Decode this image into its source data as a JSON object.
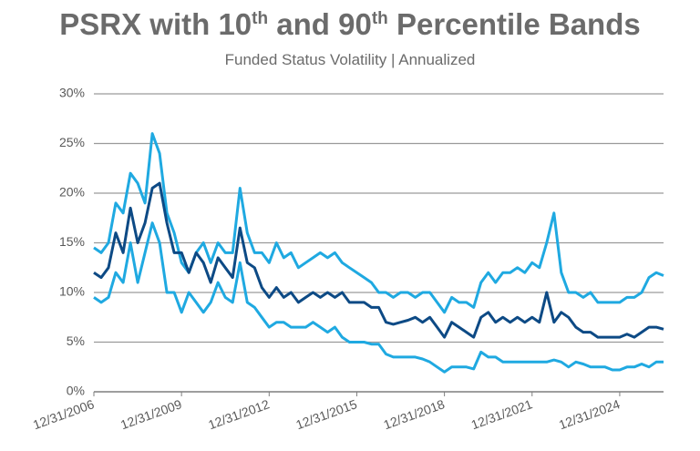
{
  "chart_data": {
    "type": "line",
    "title": "PSRX with 10th and 90th Percentile Bands",
    "subtitle": "Funded Status Volatility | Annualized",
    "categories": [
      "12/31/2006",
      null,
      null,
      null,
      null,
      null,
      null,
      null,
      null,
      null,
      null,
      null,
      "12/31/2009",
      null,
      null,
      null,
      null,
      null,
      null,
      null,
      null,
      null,
      null,
      null,
      "12/31/2012",
      null,
      null,
      null,
      null,
      null,
      null,
      null,
      null,
      null,
      null,
      null,
      "12/31/2015",
      null,
      null,
      null,
      null,
      null,
      null,
      null,
      null,
      null,
      null,
      null,
      "12/31/2018",
      null,
      null,
      null,
      null,
      null,
      null,
      null,
      null,
      null,
      null,
      null,
      "12/31/2021",
      null,
      null,
      null,
      null,
      null,
      null,
      null,
      null,
      null,
      null,
      null,
      "12/31/2024",
      null,
      null,
      null,
      null,
      null,
      null
    ],
    "series": [
      {
        "color": "#1fa9e1",
        "values": [
          14.5,
          14,
          15,
          19,
          18,
          22,
          21,
          19,
          26,
          24,
          18,
          16,
          13,
          12,
          14,
          15,
          13,
          15,
          14,
          14,
          20.5,
          16,
          14,
          14,
          13,
          15,
          13.5,
          14,
          12.5,
          13,
          13.5,
          14,
          13.5,
          14,
          13,
          12.5,
          12,
          11.5,
          11,
          10,
          10,
          9.5,
          10,
          10,
          9.5,
          10,
          10,
          9,
          8,
          9.5,
          9,
          9,
          8.5,
          11,
          12,
          11,
          12,
          12,
          12.5,
          12,
          13,
          12.5,
          15,
          18,
          12,
          10,
          10,
          9.5,
          10,
          9,
          9,
          9,
          9,
          9.5,
          9.5,
          10,
          11.5,
          12,
          11.7
        ]
      },
      {
        "color": "#0d4a85",
        "values": [
          12,
          11.5,
          12.5,
          16,
          14,
          18.5,
          15,
          17,
          20.5,
          21,
          17,
          14,
          14,
          12,
          14,
          13,
          11,
          13.5,
          12.5,
          11.5,
          16.5,
          13,
          12.5,
          10.5,
          9.5,
          10.5,
          9.5,
          10,
          9,
          9.5,
          10,
          9.5,
          10,
          9.5,
          10,
          9,
          9,
          9,
          8.5,
          8.5,
          7,
          6.8,
          7,
          7.2,
          7.5,
          7,
          7.5,
          6.5,
          5.5,
          7,
          6.5,
          6,
          5.5,
          7.5,
          8,
          7,
          7.5,
          7,
          7.5,
          7,
          7.5,
          7,
          10,
          7,
          8,
          7.5,
          6.5,
          6,
          6,
          5.5,
          5.5,
          5.5,
          5.5,
          5.8,
          5.5,
          6,
          6.5,
          6.5,
          6.3
        ]
      },
      {
        "color": "#1fa9e1",
        "values": [
          9.5,
          9,
          9.5,
          12,
          11,
          15,
          11,
          14,
          17,
          15,
          10,
          10,
          8,
          10,
          9,
          8,
          9,
          11,
          9.5,
          9,
          13,
          9,
          8.5,
          7.5,
          6.5,
          7,
          7,
          6.5,
          6.5,
          6.5,
          7,
          6.5,
          6,
          6.5,
          5.5,
          5,
          5,
          5,
          4.8,
          4.8,
          3.8,
          3.5,
          3.5,
          3.5,
          3.5,
          3.3,
          3,
          2.5,
          2,
          2.5,
          2.5,
          2.5,
          2.3,
          4,
          3.5,
          3.5,
          3,
          3,
          3,
          3,
          3,
          3,
          3,
          3.2,
          3,
          2.5,
          3,
          2.8,
          2.5,
          2.5,
          2.5,
          2.2,
          2.2,
          2.5,
          2.5,
          2.8,
          2.5,
          3,
          3
        ]
      }
    ],
    "ylim": [
      0,
      30
    ],
    "yticks": [
      {
        "value": 0,
        "label": "0%"
      },
      {
        "value": 5,
        "label": "5%"
      },
      {
        "value": 10,
        "label": "10%"
      },
      {
        "value": 15,
        "label": "15%"
      },
      {
        "value": 20,
        "label": "20%"
      },
      {
        "value": 25,
        "label": "25%"
      },
      {
        "value": 30,
        "label": "30%"
      }
    ],
    "grid": true
  }
}
